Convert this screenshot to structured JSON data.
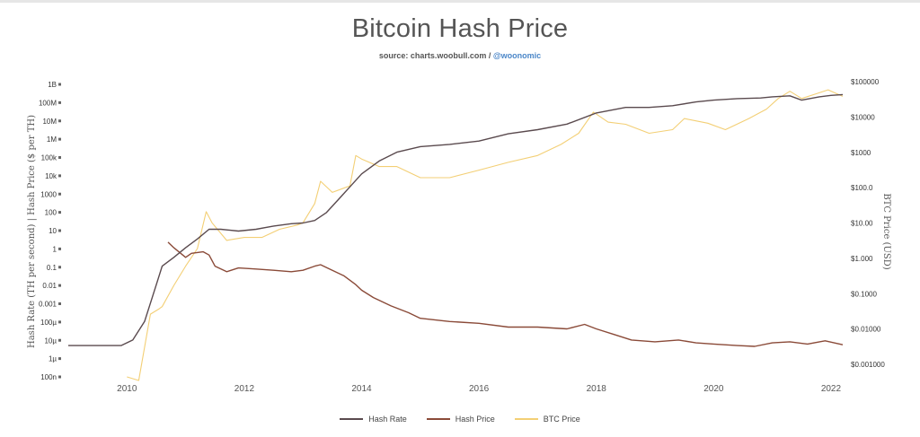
{
  "title": "Bitcoin Hash Price",
  "source": {
    "prefix": "source: charts.woobull.com / ",
    "handle": "@woonomic"
  },
  "chart_data": {
    "type": "line",
    "title": "Bitcoin Hash Price",
    "y_left_label": "Hash Rate (TH per second) | Hash Price ($ per TH)",
    "y_right_label": "BTC Price (USD)",
    "y_left_scale": "log",
    "y_right_scale": "log",
    "x_ticks": [
      "2010",
      "2012",
      "2014",
      "2016",
      "2018",
      "2020",
      "2022"
    ],
    "x_range": [
      2009.0,
      2022.2
    ],
    "y_left_ticks": [
      "1B",
      "100M",
      "10M",
      "1M",
      "100k",
      "10k",
      "1000",
      "100",
      "10",
      "1",
      "0.1",
      "0.01",
      "0.001",
      "100µ",
      "10µ",
      "1µ",
      "100n"
    ],
    "y_left_range": [
      1e-07,
      1000000000.0
    ],
    "y_right_ticks": [
      "$100000",
      "$10000",
      "$1000",
      "$100.0",
      "$10.00",
      "$1.000",
      "$0.1000",
      "$0.01000",
      "$0.001000"
    ],
    "y_right_range": [
      0.001,
      100000
    ],
    "legend_placement": "bottom",
    "grid": false,
    "series": [
      {
        "name": "Hash Rate",
        "axis": "left",
        "color": "#5a4a4e",
        "x": [
          2009.0,
          2009.3,
          2009.6,
          2009.9,
          2010.1,
          2010.3,
          2010.5,
          2010.6,
          2010.8,
          2011.0,
          2011.2,
          2011.4,
          2011.6,
          2011.9,
          2012.2,
          2012.5,
          2012.8,
          2013.0,
          2013.2,
          2013.4,
          2013.6,
          2013.8,
          2014.0,
          2014.3,
          2014.6,
          2015.0,
          2015.5,
          2016.0,
          2016.5,
          2017.0,
          2017.5,
          2018.0,
          2018.5,
          2018.9,
          2019.3,
          2019.7,
          2020.0,
          2020.4,
          2020.8,
          2021.0,
          2021.3,
          2021.5,
          2021.8,
          2022.0,
          2022.2
        ],
        "y": [
          5e-06,
          5e-06,
          5e-06,
          5e-06,
          1e-05,
          0.0001,
          0.01,
          0.1,
          0.3,
          1,
          3,
          10,
          10,
          8,
          10,
          15,
          20,
          22,
          30,
          80,
          400,
          2000,
          10000,
          50000,
          150000,
          300000,
          400000,
          600000,
          1500000,
          2500000,
          5000000,
          20000000,
          40000000,
          40000000,
          50000000,
          80000000,
          100000000,
          120000000,
          130000000,
          150000000,
          170000000,
          100000000,
          150000000,
          180000000,
          200000000
        ]
      },
      {
        "name": "Hash Price",
        "axis": "left",
        "color": "#8a4a38",
        "x": [
          2010.7,
          2010.8,
          2011.0,
          2011.1,
          2011.3,
          2011.4,
          2011.5,
          2011.7,
          2011.9,
          2012.2,
          2012.5,
          2012.8,
          2013.0,
          2013.2,
          2013.3,
          2013.5,
          2013.7,
          2013.9,
          2014.0,
          2014.2,
          2014.5,
          2014.8,
          2015.0,
          2015.5,
          2016.0,
          2016.5,
          2017.0,
          2017.5,
          2017.8,
          2018.0,
          2018.3,
          2018.6,
          2019.0,
          2019.4,
          2019.7,
          2020.0,
          2020.4,
          2020.7,
          2021.0,
          2021.3,
          2021.6,
          2021.9,
          2022.2
        ],
        "y": [
          2,
          1,
          0.3,
          0.5,
          0.6,
          0.4,
          0.1,
          0.05,
          0.08,
          0.07,
          0.06,
          0.05,
          0.06,
          0.1,
          0.12,
          0.06,
          0.03,
          0.01,
          0.005,
          0.002,
          0.0007,
          0.0003,
          0.00015,
          0.0001,
          8e-05,
          5e-05,
          5e-05,
          4e-05,
          7e-05,
          4e-05,
          2e-05,
          1e-05,
          8e-06,
          1e-05,
          7e-06,
          6e-06,
          5e-06,
          4.5e-06,
          7e-06,
          8e-06,
          6e-06,
          9e-06,
          5.5e-06
        ]
      },
      {
        "name": "BTC Price",
        "axis": "right",
        "color": "#f3cf75",
        "x": [
          2010.0,
          2010.2,
          2010.4,
          2010.55,
          2010.6,
          2010.8,
          2011.0,
          2011.2,
          2011.35,
          2011.45,
          2011.7,
          2012.0,
          2012.3,
          2012.6,
          2012.9,
          2013.0,
          2013.2,
          2013.3,
          2013.5,
          2013.8,
          2013.9,
          2014.0,
          2014.3,
          2014.6,
          2015.0,
          2015.5,
          2016.0,
          2016.5,
          2017.0,
          2017.4,
          2017.7,
          2017.95,
          2018.2,
          2018.5,
          2018.9,
          2019.3,
          2019.5,
          2019.9,
          2020.2,
          2020.6,
          2020.9,
          2021.1,
          2021.3,
          2021.5,
          2021.8,
          2021.95,
          2022.2
        ],
        "y": [
          0.001,
          0.0008,
          0.05,
          0.07,
          0.08,
          0.3,
          1,
          3,
          30,
          15,
          5,
          6,
          6,
          10,
          13,
          15,
          50,
          200,
          100,
          150,
          1000,
          800,
          500,
          500,
          250,
          250,
          400,
          650,
          1000,
          2000,
          4000,
          15000,
          8000,
          7000,
          4000,
          5000,
          10000,
          7500,
          5000,
          10000,
          18000,
          35000,
          55000,
          35000,
          50000,
          60000,
          40000
        ]
      }
    ]
  }
}
